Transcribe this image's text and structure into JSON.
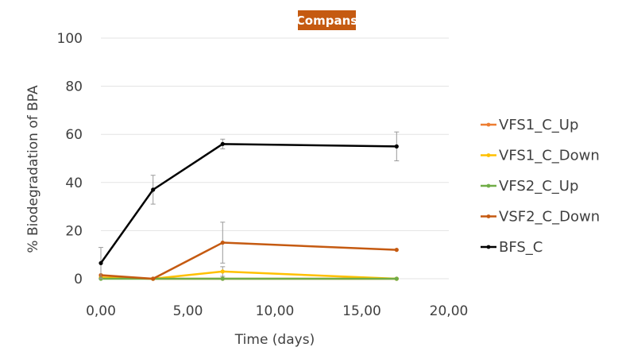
{
  "chart_data": {
    "type": "line",
    "title": "Compans",
    "title_bg_color": "#C55A11",
    "xlabel": "Time (days)",
    "ylabel": "% Biodegradation of BPA",
    "xlim": [
      0,
      20
    ],
    "ylim": [
      0,
      100
    ],
    "x_ticks": [
      0,
      5,
      10,
      15,
      20
    ],
    "y_ticks": [
      0,
      20,
      40,
      60,
      80,
      100
    ],
    "x_tick_labels": [
      "0,00",
      "5,00",
      "10,00",
      "15,00",
      "20,00"
    ],
    "y_tick_labels": [
      "0",
      "20",
      "40",
      "60",
      "80",
      "100"
    ],
    "grid": "horizontal",
    "legend_position": "right",
    "series": [
      {
        "name": "VFS1_C_Up",
        "color": "#ED7D31",
        "x": [
          0,
          3,
          7,
          17
        ],
        "y": [
          0.5,
          0,
          0,
          0
        ],
        "err": [
          0,
          0,
          0,
          0
        ]
      },
      {
        "name": "VFS1_C_Down",
        "color": "#FFC000",
        "x": [
          0,
          3,
          7,
          17
        ],
        "y": [
          0.5,
          0,
          3,
          0
        ],
        "err": [
          0,
          0,
          2,
          0
        ]
      },
      {
        "name": "VFS2_C_Up",
        "color": "#70AD47",
        "x": [
          0,
          3,
          7,
          17
        ],
        "y": [
          0,
          0,
          0,
          0
        ],
        "err": [
          0,
          0,
          0,
          0
        ]
      },
      {
        "name": "VSF2_C_Down",
        "color": "#C55A11",
        "x": [
          0,
          3,
          7,
          17
        ],
        "y": [
          1.5,
          0,
          15,
          12
        ],
        "err": [
          0,
          0,
          8.5,
          0
        ]
      },
      {
        "name": "BFS_C",
        "color": "#000000",
        "x": [
          0,
          3,
          7,
          17
        ],
        "y": [
          6.5,
          37,
          56,
          55
        ],
        "err": [
          6.5,
          6,
          2,
          6
        ]
      }
    ]
  }
}
